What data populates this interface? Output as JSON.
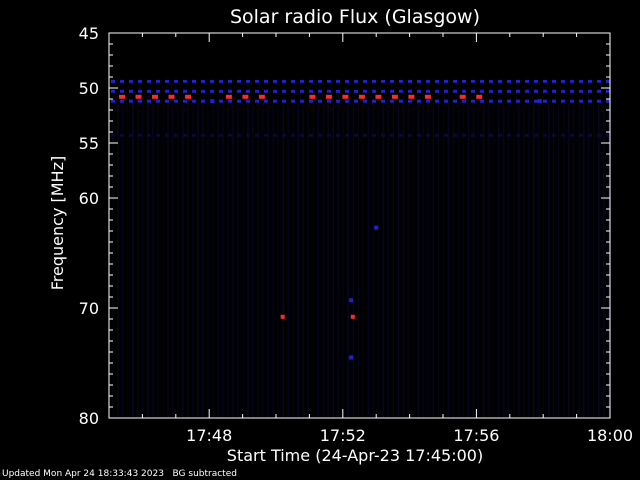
{
  "chart_data": {
    "type": "heatmap",
    "title": "Solar radio Flux (Glasgow)",
    "xlabel": "Start Time (24-Apr-23 17:45:00)",
    "ylabel": "Frequency [MHz]",
    "x_start": "17:45:00",
    "x_end": "18:00:00",
    "xlim_minutes": [
      0,
      15
    ],
    "ylim": [
      45,
      80
    ],
    "y_ticks": [
      45,
      50,
      55,
      60,
      70,
      80
    ],
    "x_ticks": [
      "17:48",
      "17:52",
      "17:56",
      "18:00"
    ],
    "colors": {
      "background": "#000000",
      "faint": "#0a0a3a",
      "medium": "#2222cc",
      "strong": "#ff2a2a"
    },
    "hot_bands": [
      {
        "freq": 50.8,
        "segments": [
          [
            0.3,
            2.4
          ],
          [
            3.5,
            4.7
          ],
          [
            6.0,
            9.8
          ],
          [
            10.5,
            11.1
          ]
        ]
      }
    ],
    "blue_bands": [
      {
        "freq": 49.4,
        "span": [
          0.0,
          15.0
        ]
      },
      {
        "freq": 50.3,
        "span": [
          0.0,
          15.0
        ]
      },
      {
        "freq": 51.2,
        "span": [
          0.0,
          15.0
        ]
      },
      {
        "freq": 54.3,
        "span": [
          0.0,
          15.0
        ]
      }
    ],
    "hot_spots": [
      {
        "time": 5.2,
        "freq": 70.8
      },
      {
        "time": 7.3,
        "freq": 70.8
      }
    ],
    "blue_spots": [
      {
        "time": 3.1,
        "freq": 51.2
      },
      {
        "time": 12.9,
        "freq": 51.2
      },
      {
        "time": 8.0,
        "freq": 62.7
      },
      {
        "time": 7.25,
        "freq": 69.3
      },
      {
        "time": 7.25,
        "freq": 74.5
      }
    ]
  },
  "footer": {
    "updated": "Updated Mon Apr 24 18:33:43 2023",
    "note": "BG subtracted"
  }
}
